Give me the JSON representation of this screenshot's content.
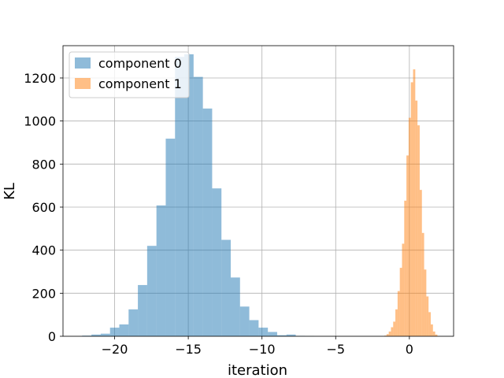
{
  "chart_data": {
    "type": "bar",
    "xlabel": "iteration",
    "ylabel": "KL",
    "xlim": [
      -23.5,
      3.0
    ],
    "ylim": [
      0,
      1350
    ],
    "grid": true,
    "legend_placement": "top-left",
    "x_ticks": [
      -20,
      -15,
      -10,
      -5,
      0
    ],
    "x_tick_labels": [
      "−20",
      "−15",
      "−10",
      "−5",
      "0"
    ],
    "y_ticks": [
      0,
      200,
      400,
      600,
      800,
      1000,
      1200
    ],
    "y_tick_labels": [
      "0",
      "200",
      "400",
      "600",
      "800",
      "1000",
      "1200"
    ],
    "series": [
      {
        "name": "component 0",
        "color": "#1f77b4",
        "opacity": 0.5,
        "bin_edges": [
          -22.2,
          -21.57,
          -20.94,
          -20.31,
          -19.68,
          -19.05,
          -18.42,
          -17.79,
          -17.16,
          -16.53,
          -15.9,
          -15.27,
          -14.64,
          -14.01,
          -13.38,
          -12.75,
          -12.12,
          -11.49,
          -10.86,
          -10.23,
          -9.6,
          -8.97,
          -8.34,
          -7.71,
          -7.08,
          -6.45
        ],
        "counts": [
          3,
          8,
          12,
          40,
          55,
          125,
          238,
          420,
          608,
          918,
          1298,
          1310,
          1205,
          1058,
          687,
          448,
          273,
          138,
          75,
          40,
          20,
          5,
          8,
          2,
          1
        ]
      },
      {
        "name": "component 1",
        "color": "#ff7f0e",
        "opacity": 0.5,
        "bin_edges": [
          -1.7,
          -1.55,
          -1.4,
          -1.25,
          -1.1,
          -0.95,
          -0.8,
          -0.65,
          -0.5,
          -0.35,
          -0.2,
          -0.05,
          0.1,
          0.25,
          0.4,
          0.55,
          0.7,
          0.85,
          1.0,
          1.15,
          1.3,
          1.45,
          1.6,
          1.75,
          1.9
        ],
        "counts": [
          3,
          10,
          22,
          42,
          68,
          125,
          210,
          318,
          430,
          630,
          840,
          1015,
          1180,
          1240,
          1095,
          980,
          680,
          480,
          310,
          185,
          112,
          55,
          22,
          8
        ]
      }
    ]
  }
}
